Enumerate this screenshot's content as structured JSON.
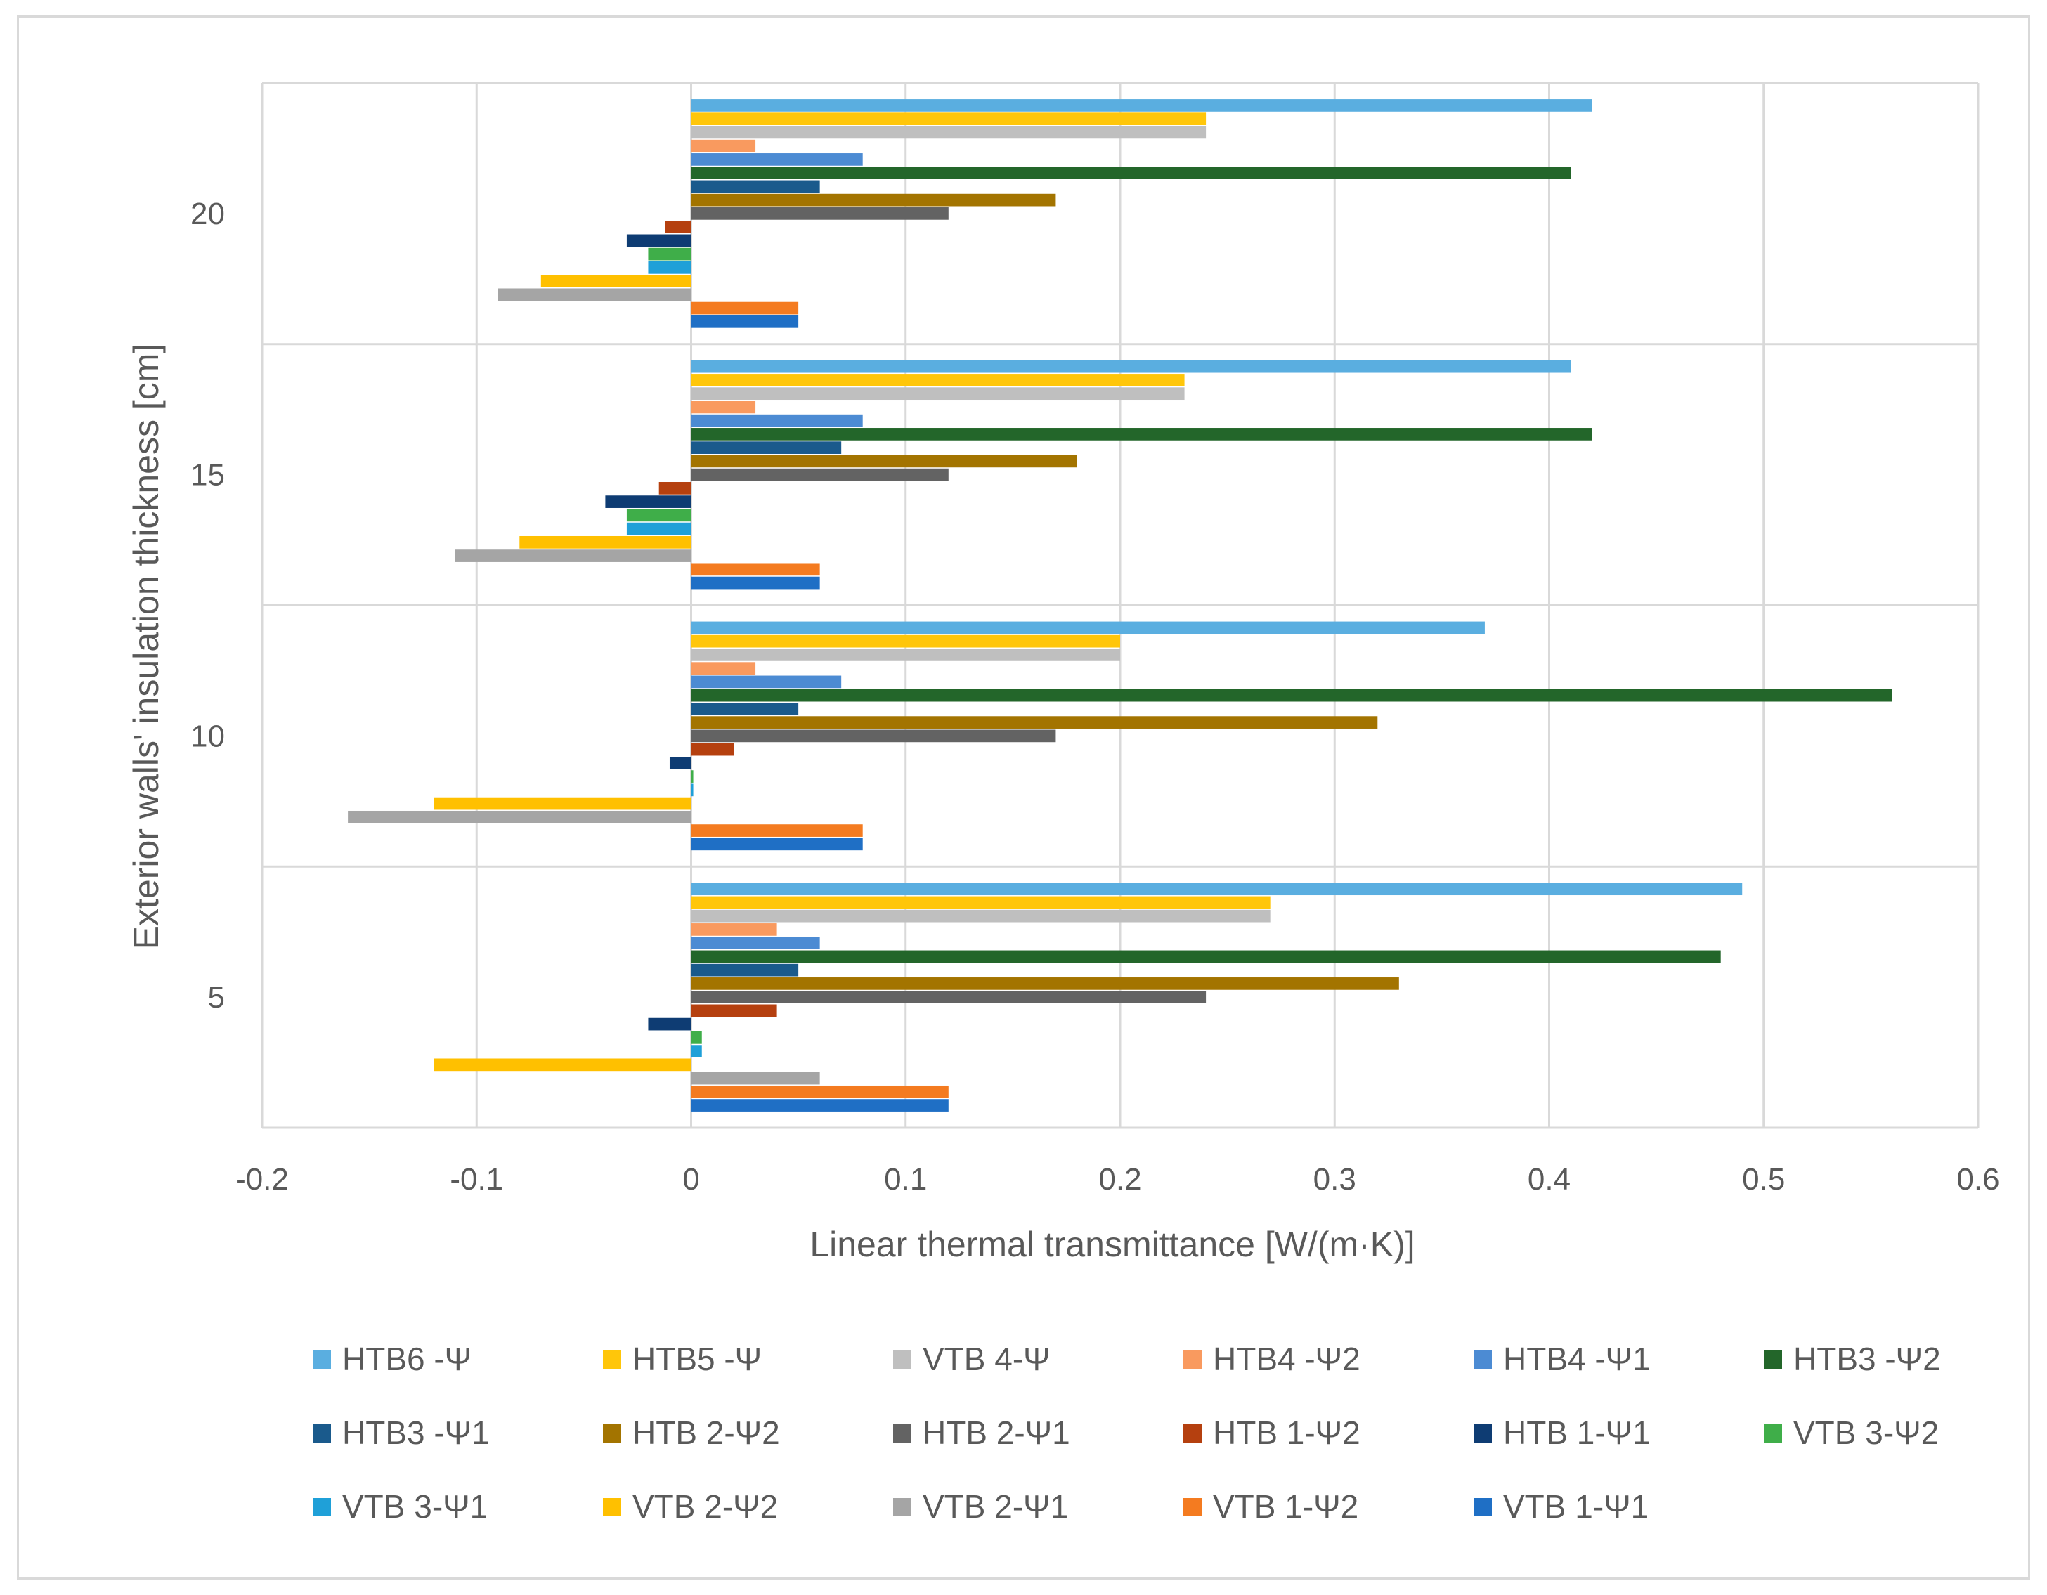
{
  "chart_data": {
    "type": "bar",
    "orientation": "horizontal",
    "title": "",
    "xlabel": "Linear thermal transmittance [W/(m·K)]",
    "ylabel": "Exterior walls' insulation thickness [cm]",
    "xlim": [
      -0.2,
      0.6
    ],
    "xticks": [
      "-0.2",
      "-0.1",
      "0",
      "0.1",
      "0.2",
      "0.3",
      "0.4",
      "0.5",
      "0.6"
    ],
    "xtick_values": [
      -0.2,
      -0.1,
      0,
      0.1,
      0.2,
      0.3,
      0.4,
      0.5,
      0.6
    ],
    "categories": [
      "5",
      "10",
      "15",
      "20"
    ],
    "grid": true,
    "legend_position": "bottom",
    "series": [
      {
        "name": "VTB 1-Ψ1",
        "color": "#1f6fc5",
        "values": [
          0.12,
          0.08,
          0.06,
          0.05
        ]
      },
      {
        "name": "VTB 1-Ψ2",
        "color": "#f47b20",
        "values": [
          0.12,
          0.08,
          0.06,
          0.05
        ]
      },
      {
        "name": "VTB 2-Ψ1",
        "color": "#a5a5a5",
        "values": [
          0.06,
          -0.16,
          -0.11,
          -0.09
        ]
      },
      {
        "name": "VTB 2-Ψ2",
        "color": "#ffc000",
        "values": [
          -0.12,
          -0.12,
          -0.08,
          -0.07
        ]
      },
      {
        "name": "VTB 3-Ψ1",
        "color": "#1fa0d8",
        "values": [
          0.005,
          0.001,
          -0.03,
          -0.02
        ]
      },
      {
        "name": "VTB 3-Ψ2",
        "color": "#3fae49",
        "values": [
          0.005,
          0.001,
          -0.03,
          -0.02
        ]
      },
      {
        "name": "HTB 1-Ψ1",
        "color": "#0e3c73",
        "values": [
          -0.02,
          -0.01,
          -0.04,
          -0.03
        ]
      },
      {
        "name": "HTB 1-Ψ2",
        "color": "#b5400f",
        "values": [
          0.04,
          0.02,
          -0.015,
          -0.012
        ]
      },
      {
        "name": "HTB 2-Ψ1",
        "color": "#636363",
        "values": [
          0.24,
          0.17,
          0.12,
          0.12
        ]
      },
      {
        "name": "HTB 2-Ψ2",
        "color": "#a37400",
        "values": [
          0.33,
          0.32,
          0.18,
          0.17
        ]
      },
      {
        "name": "HTB3 -Ψ1",
        "color": "#1a5a8c",
        "values": [
          0.05,
          0.05,
          0.07,
          0.06
        ]
      },
      {
        "name": "HTB3 -Ψ2",
        "color": "#23662a",
        "values": [
          0.48,
          0.56,
          0.42,
          0.41
        ]
      },
      {
        "name": "HTB4 -Ψ1",
        "color": "#4c8bd3",
        "values": [
          0.06,
          0.07,
          0.08,
          0.08
        ]
      },
      {
        "name": "HTB4 -Ψ2",
        "color": "#f99a5f",
        "values": [
          0.04,
          0.03,
          0.03,
          0.03
        ]
      },
      {
        "name": "VTB 4-Ψ",
        "color": "#bfbfbf",
        "values": [
          0.27,
          0.2,
          0.23,
          0.24
        ]
      },
      {
        "name": "HTB5 -Ψ",
        "color": "#ffc60a",
        "values": [
          0.27,
          0.2,
          0.23,
          0.24
        ]
      },
      {
        "name": "HTB6 -Ψ",
        "color": "#5aaee0",
        "values": [
          0.49,
          0.37,
          0.41,
          0.42
        ]
      }
    ],
    "legend_order": [
      "HTB6 -Ψ",
      "HTB5 -Ψ",
      "VTB 4-Ψ",
      "HTB4 -Ψ2",
      "HTB4 -Ψ1",
      "HTB3 -Ψ2",
      "HTB3 -Ψ1",
      "HTB 2-Ψ2",
      "HTB 2-Ψ1",
      "HTB 1-Ψ2",
      "HTB 1-Ψ1",
      "VTB 3-Ψ2",
      "VTB 3-Ψ1",
      "VTB 2-Ψ2",
      "VTB 2-Ψ1",
      "VTB 1-Ψ2",
      "VTB 1-Ψ1"
    ]
  },
  "colors": {
    "gridline": "#d9d9d9",
    "text": "#595959",
    "frame": "#d9d9d9"
  }
}
